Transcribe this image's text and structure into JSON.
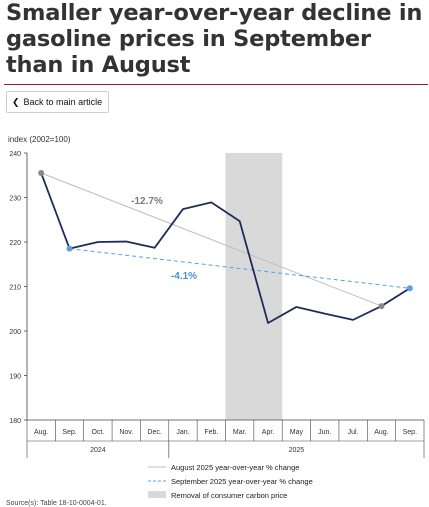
{
  "title": "Smaller year-over-year decline in gasoline prices in September than in August",
  "back_button": {
    "label": "Back to main article",
    "icon": "chevron-left-icon"
  },
  "source": "Source(s): Table 18-10-0004-01.",
  "colors": {
    "main": "#1f2d5a",
    "aug_line": "#bdbdbd",
    "sep_line": "#5aa0e6",
    "shade": "#d9d9d9",
    "aug_label": "#7a7a7a",
    "sep_label": "#4a90d9"
  },
  "chart_data": {
    "type": "line",
    "ylabel": "index (2002=100)",
    "ylim": [
      180,
      240
    ],
    "yticks": [
      180,
      190,
      200,
      210,
      220,
      230,
      240
    ],
    "categories": [
      "Aug.",
      "Sep.",
      "Oct.",
      "Nov.",
      "Dec.",
      "Jan.",
      "Feb.",
      "Mar.",
      "Apr.",
      "May",
      "Jun.",
      "Jul.",
      "Aug.",
      "Sep."
    ],
    "years": [
      {
        "label": "2024",
        "start": 0,
        "end": 4
      },
      {
        "label": "2025",
        "start": 5,
        "end": 13
      }
    ],
    "series": [
      {
        "values": [
          235.5,
          218.5,
          220.0,
          220.1,
          218.7,
          227.4,
          228.9,
          224.7,
          201.8,
          205.4,
          203.9,
          202.5,
          205.6,
          209.6
        ]
      }
    ],
    "comparisons": [
      {
        "name": "August 2025 year-over-year % change",
        "from": 0,
        "to": 12,
        "label": "-12.7%"
      },
      {
        "name": "September 2025 year-over-year % change",
        "from": 1,
        "to": 13,
        "label": "-4.1%"
      }
    ],
    "shaded_region": {
      "name": "Removal of consumer carbon price",
      "from": 7,
      "to": 8
    }
  }
}
